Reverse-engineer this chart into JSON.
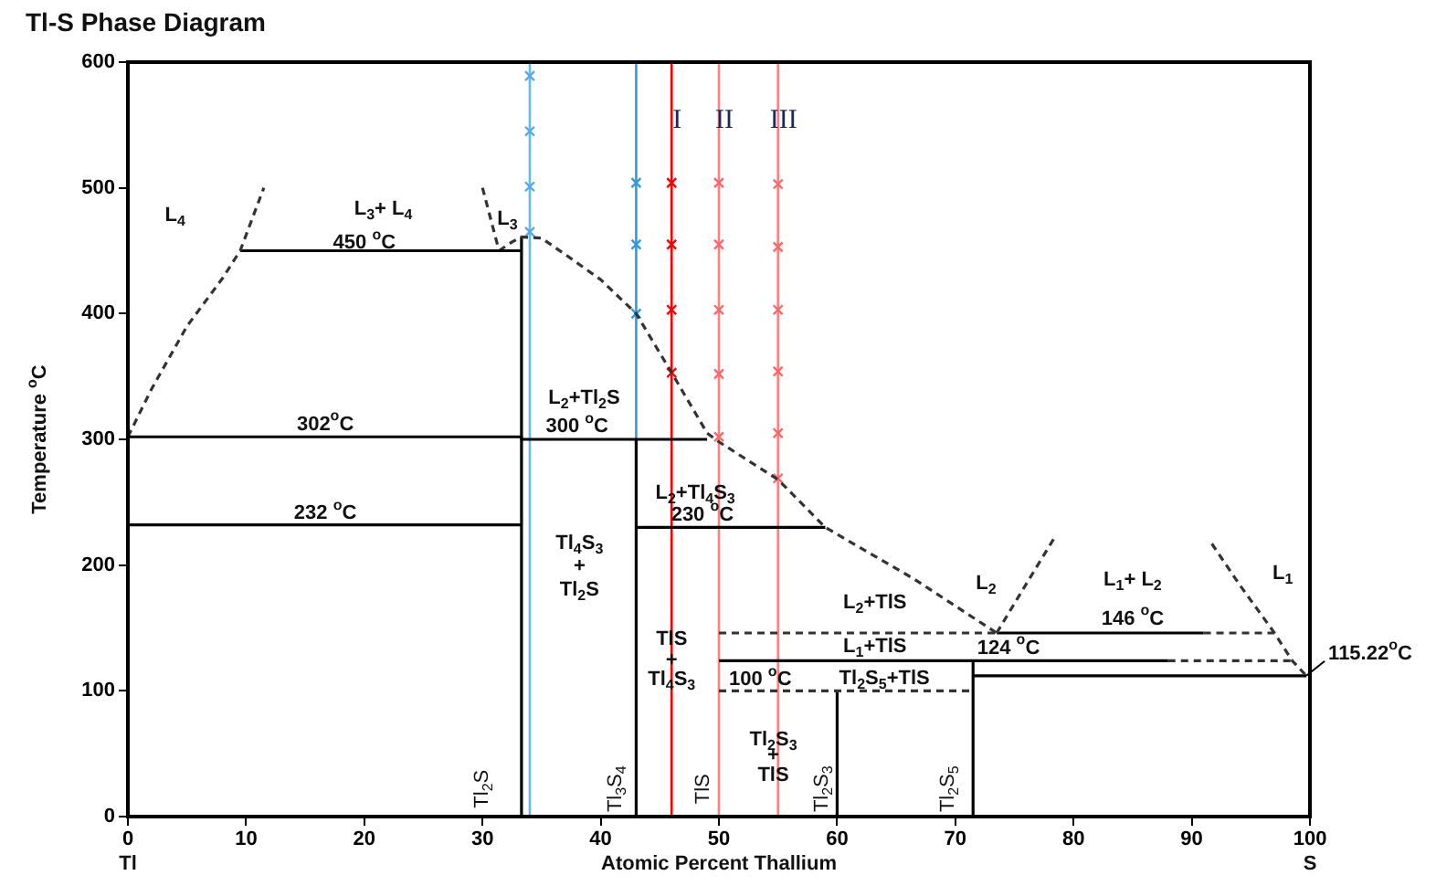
{
  "chart_data": {
    "type": "line",
    "title": "Tl-S Phase Diagram",
    "xlabel": "Atomic Percent Thallium",
    "ylabel": "Temperature $^{o}$C",
    "xlim": [
      0,
      100
    ],
    "ylim": [
      0,
      600
    ],
    "xticks": [
      0,
      10,
      20,
      30,
      40,
      50,
      60,
      70,
      80,
      90,
      100
    ],
    "yticks": [
      0,
      100,
      200,
      300,
      400,
      500,
      600
    ],
    "grid": false,
    "legend": false,
    "marker": "none",
    "series": [
      {
        "color": "#333333",
        "line_style": "dashed",
        "x": [
          0,
          2,
          5,
          8,
          9.5,
          11.5
        ],
        "values": [
          302,
          340,
          390,
          428,
          450,
          500
        ]
      },
      {
        "color": "#000000",
        "line_style": "solid",
        "x": [
          9.5,
          33.3
        ],
        "values": [
          450,
          450
        ]
      },
      {
        "color": "#333333",
        "line_style": "dashed",
        "x": [
          30,
          31.4
        ],
        "values": [
          500,
          450
        ]
      },
      {
        "color": "#333333",
        "line_style": "dashed",
        "x": [
          31.4,
          32.5,
          33.3,
          35,
          37,
          40,
          43,
          46,
          49,
          50,
          55,
          59,
          66.5,
          73.5
        ],
        "values": [
          450,
          457,
          461,
          460,
          447,
          427,
          400,
          353,
          305,
          298,
          268,
          230,
          189,
          146
        ]
      },
      {
        "color": "#333333",
        "line_style": "dashed",
        "x": [
          73.5,
          76,
          78.4
        ],
        "values": [
          146,
          185,
          222
        ]
      },
      {
        "color": "#333333",
        "line_style": "dashed",
        "x": [
          91.7,
          94,
          97,
          98.5,
          99.7
        ],
        "values": [
          217,
          185,
          146,
          124,
          112
        ]
      },
      {
        "color": "#000000",
        "line_style": "solid",
        "x": [
          0,
          33.3,
          33.3,
          49
        ],
        "values": [
          302,
          302,
          300,
          300
        ]
      },
      {
        "color": "#000000",
        "line_style": "solid",
        "x": [
          0,
          33.3
        ],
        "values": [
          232,
          232
        ]
      },
      {
        "color": "#000000",
        "line_style": "solid",
        "x": [
          33.3,
          33.3
        ],
        "values": [
          0,
          461
        ]
      },
      {
        "color": "#000000",
        "line_style": "solid",
        "x": [
          43,
          43
        ],
        "values": [
          0,
          300
        ]
      },
      {
        "color": "#000000",
        "line_style": "solid",
        "x": [
          43,
          59
        ],
        "values": [
          230,
          230
        ]
      },
      {
        "color": "#333333",
        "line_style": "dashed",
        "x": [
          50,
          73.5
        ],
        "values": [
          146,
          146
        ]
      },
      {
        "color": "#000000",
        "line_style": "solid",
        "x": [
          73.5,
          91
        ],
        "values": [
          146,
          146
        ]
      },
      {
        "color": "#333333",
        "line_style": "dashed",
        "x": [
          91,
          97
        ],
        "values": [
          146,
          146
        ]
      },
      {
        "color": "#000000",
        "line_style": "solid",
        "x": [
          50,
          88
        ],
        "values": [
          124,
          124
        ]
      },
      {
        "color": "#333333",
        "line_style": "dashed",
        "x": [
          88,
          98.5
        ],
        "values": [
          124,
          124
        ]
      },
      {
        "color": "#333333",
        "line_style": "dashed",
        "x": [
          50,
          71.5
        ],
        "values": [
          100,
          100
        ]
      },
      {
        "color": "#000000",
        "line_style": "solid",
        "x": [
          60,
          60
        ],
        "values": [
          0,
          100
        ]
      },
      {
        "color": "#000000",
        "line_style": "solid",
        "x": [
          71.5,
          71.5
        ],
        "values": [
          0,
          124
        ]
      },
      {
        "color": "#000000",
        "line_style": "solid",
        "x": [
          71.5,
          99.7
        ],
        "values": [
          112,
          112
        ]
      },
      {
        "type": "scatter",
        "marker": "cross",
        "color": "#55aaee",
        "x": [
          34,
          34,
          34,
          34
        ],
        "values": [
          589,
          545,
          501,
          465
        ]
      },
      {
        "type": "scatter",
        "marker": "cross",
        "color": "#3399dd",
        "x": [
          43,
          43,
          43
        ],
        "values": [
          504,
          455,
          400
        ]
      },
      {
        "type": "scatter",
        "marker": "cross",
        "color": "#ff0000",
        "x": [
          46,
          46,
          46,
          46
        ],
        "values": [
          504,
          455,
          403,
          353
        ]
      },
      {
        "type": "scatter",
        "marker": "cross",
        "color": "#ff6666",
        "x": [
          50,
          50,
          50,
          50,
          50
        ],
        "values": [
          504,
          455,
          403,
          352,
          302
        ]
      },
      {
        "type": "scatter",
        "marker": "cross",
        "color": "#ff6666",
        "x": [
          55,
          55,
          55,
          55,
          55,
          55
        ],
        "values": [
          503,
          453,
          403,
          354,
          305,
          269
        ]
      }
    ],
    "ref_lines": [
      {
        "axis": "x",
        "value": 34,
        "color": "#66bbee"
      },
      {
        "axis": "x",
        "value": 43,
        "color": "#3399dd"
      },
      {
        "axis": "x",
        "value": 46,
        "color": "#ff0000",
        "label": "I"
      },
      {
        "axis": "x",
        "value": 50,
        "color": "#ff8080",
        "label": "II"
      },
      {
        "axis": "x",
        "value": 55,
        "color": "#ff8080",
        "label": "III"
      }
    ],
    "annotations": [
      "L$_{4}$",
      "L$_{3}$+ L$_{4}$",
      {
        "text": "450 $^{o}$C",
        "x": 20,
        "y": 456
      },
      "L$_{3}$",
      "302$^{o}$C",
      "232 $^{o}$C",
      "L$_{2}$+Tl$_{2}$S",
      "300 $^{o}$C",
      "L$_{2}$+Tl$_{4}$S$_{3}$",
      "230 $^{o}$C",
      "Tl$_{4}$S$_{3}$",
      "+",
      "Tl$_{2}$S",
      "L$_{2}$",
      "L$_{1}$+ L$_{2}$",
      "L$_{1}$",
      "L$_{2}$+TlS",
      "146 $^{o}$C",
      "L$_{1}$+TlS",
      "124 $^{o}$C",
      {
        "text": "TlS",
        "x": 46,
        "y": 141
      },
      {
        "text": "+",
        "x": 46,
        "y": 124
      },
      {
        "text": "Tl$_{4}$S$_{3}$",
        "x": 46,
        "y": 109
      },
      "100 $^{o}$C",
      "Tl$_{2}$S$_{5}$+TlS",
      {
        "text": "Tl$_{2}$S$_{3}$",
        "x": 54.6,
        "y": 61
      },
      {
        "text": "+",
        "x": 54.6,
        "y": 49
      },
      {
        "text": "TlS",
        "x": 54.6,
        "y": 33
      },
      "Tl$_{2}$S",
      "Tl$_{3}$S$_{4}$",
      "TlS",
      "Tl$_{2}$S$_{3}$",
      "Tl$_{2}$S$_{5}$",
      {
        "text": "115.22$^{o}$C",
        "x": 99.7,
        "y": 112
      },
      "Tl",
      "S"
    ]
  }
}
